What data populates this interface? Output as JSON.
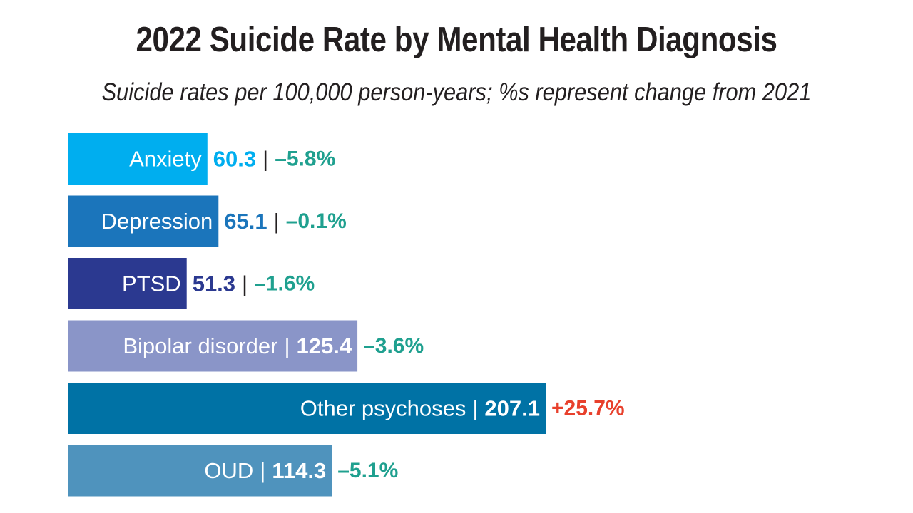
{
  "title": "2022 Suicide Rate by Mental Health Diagnosis",
  "subtitle": "Suicide rates per 100,000 person-years; %s represent change from 2021",
  "separator": "|",
  "colors": {
    "text": "#231f20",
    "negative_change": "#1fa08f",
    "positive_change": "#e8402c"
  },
  "chart_data": {
    "type": "bar",
    "orientation": "horizontal",
    "categories": [
      "Anxiety",
      "Depression",
      "PTSD",
      "Bipolar disorder",
      "Other psychoses",
      "OUD"
    ],
    "values": [
      60.3,
      65.1,
      51.3,
      125.4,
      207.1,
      114.3
    ],
    "value_labels": [
      "60.3",
      "65.1",
      "51.3",
      "125.4",
      "207.1",
      "114.3"
    ],
    "change_labels": [
      "–5.8%",
      "–0.1%",
      "–1.6%",
      "–3.6%",
      "+25.7%",
      "–5.1%"
    ],
    "changes": [
      -5.8,
      -0.1,
      -1.6,
      -3.6,
      25.7,
      -5.1
    ],
    "bar_colors": [
      "#00aeef",
      "#1b75bb",
      "#2b3990",
      "#8a95c8",
      "#0072a5",
      "#4f93bd"
    ],
    "label_inside": [
      true,
      true,
      true,
      true,
      true,
      true
    ],
    "value_inside": [
      false,
      false,
      false,
      true,
      true,
      true
    ],
    "title": "2022 Suicide Rate by Mental Health Diagnosis",
    "xlabel": "",
    "ylabel": "",
    "grid": false,
    "legend": "none"
  }
}
